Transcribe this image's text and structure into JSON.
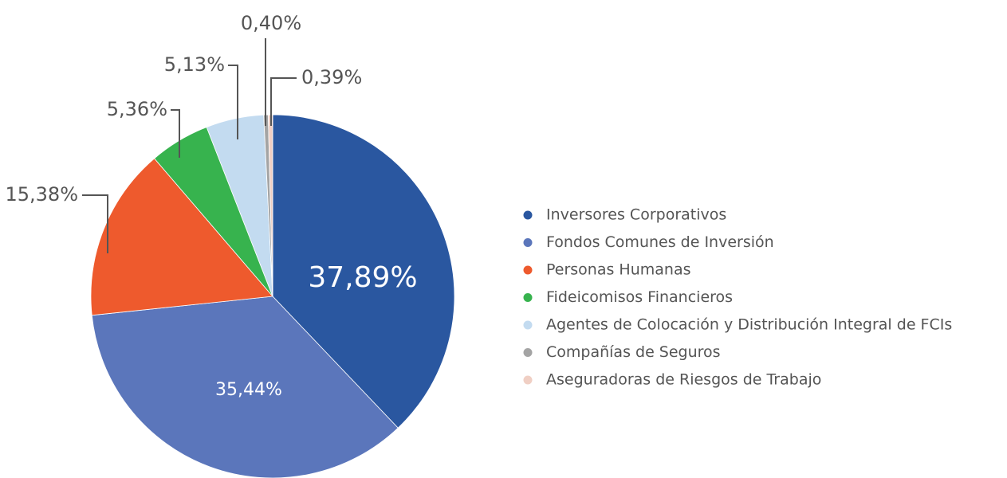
{
  "chart_data": {
    "type": "pie",
    "categories": [
      "Inversores Corporativos",
      "Fondos Comunes de Inversión",
      "Personas Humanas",
      "Fideicomisos Financieros",
      "Agentes de Colocación y Distribución Integral de FCIs",
      "Compañías de Seguros",
      "Aseguradoras de Riesgos de Trabajo"
    ],
    "values": [
      37.89,
      35.44,
      15.38,
      5.36,
      5.13,
      0.4,
      0.39
    ],
    "value_labels": [
      "37,89%",
      "35,44%",
      "15,38%",
      "5,36%",
      "5,13%",
      "0,40%",
      "0,39%"
    ],
    "colors": [
      "#2a57a0",
      "#5b76bb",
      "#ee5a2d",
      "#37b34e",
      "#c3dbf0",
      "#a4a4a4",
      "#f0cfc4"
    ],
    "legend": "right"
  }
}
